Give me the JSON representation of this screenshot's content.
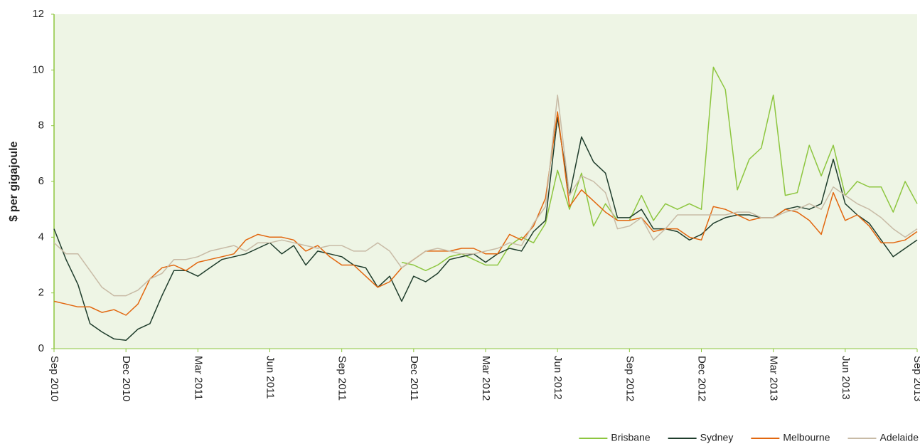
{
  "chart_data": {
    "type": "line",
    "y_label": "$ per gigajoule",
    "x": [
      0,
      0.5,
      1,
      1.5,
      2,
      2.5,
      3,
      3.5,
      4,
      4.5,
      5,
      5.5,
      6,
      6.5,
      7,
      7.5,
      8,
      8.5,
      9,
      9.5,
      10,
      10.5,
      11,
      11.5,
      12,
      12.5,
      13,
      13.5,
      14,
      14.5,
      15,
      15.5,
      16,
      16.5,
      17,
      17.5,
      18,
      18.5,
      19,
      19.5,
      20,
      20.5,
      21,
      21.5,
      22,
      22.5,
      23,
      23.5,
      24,
      24.5,
      25,
      25.5,
      26,
      26.5,
      27,
      27.5,
      28,
      28.5,
      29,
      29.5,
      30,
      30.5,
      31,
      31.5,
      32,
      32.5,
      33,
      33.5,
      34,
      34.5,
      35,
      35.5,
      36
    ],
    "xlim": [
      0,
      36
    ],
    "xticks": [
      {
        "value": 0,
        "label": "Sep 2010"
      },
      {
        "value": 3,
        "label": "Dec 2010"
      },
      {
        "value": 6,
        "label": "Mar 2011"
      },
      {
        "value": 9,
        "label": "Jun 2011"
      },
      {
        "value": 12,
        "label": "Sep 2011"
      },
      {
        "value": 15,
        "label": "Dec 2011"
      },
      {
        "value": 18,
        "label": "Mar 2012"
      },
      {
        "value": 21,
        "label": "Jun 2012"
      },
      {
        "value": 24,
        "label": "Sep 2012"
      },
      {
        "value": 27,
        "label": "Dec 2012"
      },
      {
        "value": 30,
        "label": "Mar 2013"
      },
      {
        "value": 33,
        "label": "Jun 2013"
      },
      {
        "value": 36,
        "label": "Sep 2013"
      }
    ],
    "ylim": [
      0,
      12
    ],
    "yticks": [
      0,
      2,
      4,
      6,
      8,
      10,
      12
    ],
    "grid": false,
    "legend": "bottom-right",
    "series": [
      {
        "name": "Brisbane",
        "color": "#8dc63f",
        "values": [
          null,
          null,
          null,
          null,
          null,
          null,
          null,
          null,
          null,
          null,
          null,
          null,
          null,
          null,
          null,
          null,
          null,
          null,
          null,
          null,
          null,
          null,
          null,
          null,
          null,
          null,
          null,
          null,
          null,
          3.1,
          3.0,
          2.8,
          3.0,
          3.3,
          3.4,
          3.2,
          3.0,
          3.0,
          3.7,
          4.0,
          3.8,
          4.5,
          6.4,
          5.0,
          6.3,
          4.4,
          5.2,
          4.6,
          4.6,
          5.5,
          4.6,
          5.2,
          5.0,
          5.2,
          5.0,
          10.1,
          9.3,
          5.7,
          6.8,
          7.2,
          9.1,
          5.5,
          5.6,
          7.3,
          6.2,
          7.3,
          5.5,
          6.0,
          5.8,
          5.8,
          4.9,
          6.0,
          5.2
        ]
      },
      {
        "name": "Sydney",
        "color": "#1f3d2c",
        "values": [
          4.3,
          3.2,
          2.3,
          0.9,
          0.6,
          0.35,
          0.3,
          0.7,
          0.9,
          1.9,
          2.8,
          2.8,
          2.6,
          2.9,
          3.2,
          3.3,
          3.4,
          3.6,
          3.8,
          3.4,
          3.7,
          3.0,
          3.5,
          3.4,
          3.3,
          3.0,
          2.9,
          2.2,
          2.6,
          1.7,
          2.6,
          2.4,
          2.7,
          3.2,
          3.3,
          3.4,
          3.1,
          3.4,
          3.6,
          3.5,
          4.2,
          4.6,
          8.3,
          5.5,
          7.6,
          6.7,
          6.3,
          4.7,
          4.7,
          5.0,
          4.3,
          4.3,
          4.2,
          3.9,
          4.1,
          4.5,
          4.7,
          4.8,
          4.8,
          4.7,
          4.7,
          5.0,
          5.1,
          5.0,
          5.2,
          6.8,
          5.2,
          4.8,
          4.5,
          3.9,
          3.3,
          3.6,
          3.9
        ]
      },
      {
        "name": "Melbourne",
        "color": "#e2670f",
        "values": [
          1.7,
          1.6,
          1.5,
          1.5,
          1.3,
          1.4,
          1.2,
          1.6,
          2.5,
          2.9,
          3.0,
          2.8,
          3.1,
          3.2,
          3.3,
          3.4,
          3.9,
          4.1,
          4.0,
          4.0,
          3.9,
          3.5,
          3.7,
          3.3,
          3.0,
          3.0,
          2.6,
          2.2,
          2.4,
          2.9,
          3.2,
          3.5,
          3.5,
          3.5,
          3.6,
          3.6,
          3.4,
          3.4,
          4.1,
          3.9,
          4.4,
          5.4,
          8.5,
          5.1,
          5.7,
          5.3,
          4.9,
          4.6,
          4.6,
          4.7,
          4.2,
          4.3,
          4.3,
          4.0,
          3.9,
          5.1,
          5.0,
          4.8,
          4.6,
          4.7,
          4.7,
          5.0,
          4.9,
          4.6,
          4.1,
          5.6,
          4.6,
          4.8,
          4.4,
          3.8,
          3.8,
          3.9,
          4.2
        ]
      },
      {
        "name": "Adelaide",
        "color": "#c8bba6",
        "values": [
          3.8,
          3.4,
          3.4,
          2.8,
          2.2,
          1.9,
          1.9,
          2.1,
          2.5,
          2.7,
          3.2,
          3.2,
          3.3,
          3.5,
          3.6,
          3.7,
          3.5,
          3.8,
          3.8,
          3.9,
          3.8,
          3.7,
          3.6,
          3.7,
          3.7,
          3.5,
          3.5,
          3.8,
          3.5,
          2.9,
          3.2,
          3.5,
          3.6,
          3.5,
          3.4,
          3.4,
          3.5,
          3.6,
          3.8,
          3.7,
          4.5,
          5.1,
          9.1,
          5.5,
          6.2,
          6.0,
          5.6,
          4.3,
          4.4,
          4.7,
          3.9,
          4.3,
          4.8,
          4.8,
          4.8,
          4.8,
          4.8,
          4.9,
          4.9,
          4.7,
          4.7,
          4.9,
          5.0,
          5.2,
          5.0,
          5.8,
          5.5,
          5.2,
          5.0,
          4.7,
          4.3,
          4.0,
          4.3
        ]
      }
    ]
  }
}
